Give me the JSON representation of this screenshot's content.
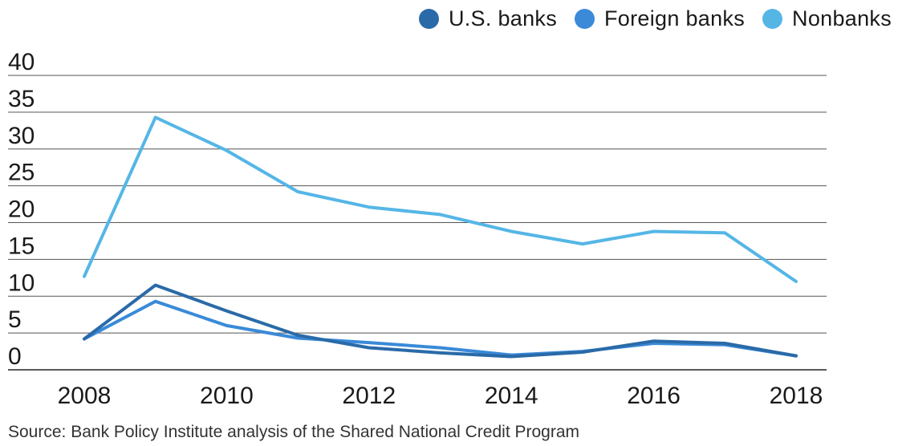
{
  "legend": {
    "items": [
      {
        "label": "U.S. banks",
        "color": "#2a6aa8"
      },
      {
        "label": "Foreign banks",
        "color": "#3a8ad8"
      },
      {
        "label": "Nonbanks",
        "color": "#55b6e6"
      }
    ]
  },
  "source": "Source: Bank Policy Institute analysis of the Shared National Credit Program",
  "chart_data": {
    "type": "line",
    "x": [
      2008,
      2009,
      2010,
      2011,
      2012,
      2013,
      2014,
      2015,
      2016,
      2017,
      2018
    ],
    "xticks": [
      "2008",
      "2010",
      "2012",
      "2014",
      "2016",
      "2018"
    ],
    "yticks": [
      "0",
      "5",
      "10",
      "15",
      "20",
      "25",
      "30",
      "35",
      "40"
    ],
    "ylim": [
      0,
      40
    ],
    "grid": true,
    "legend_position": "top-right",
    "series": [
      {
        "name": "Nonbanks",
        "color": "#55b6e6",
        "values": [
          12.7,
          34.3,
          29.8,
          24.2,
          22.1,
          21.1,
          18.8,
          17.1,
          18.8,
          18.6,
          12.0
        ]
      },
      {
        "name": "Foreign banks",
        "color": "#3a8ad8",
        "values": [
          4.2,
          9.3,
          6.0,
          4.3,
          3.7,
          3.0,
          2.0,
          2.5,
          3.6,
          3.4,
          1.9
        ]
      },
      {
        "name": "U.S. banks",
        "color": "#2a6aa8",
        "values": [
          4.2,
          11.5,
          8.0,
          4.7,
          3.0,
          2.3,
          1.8,
          2.4,
          3.9,
          3.6,
          1.9
        ]
      }
    ]
  }
}
